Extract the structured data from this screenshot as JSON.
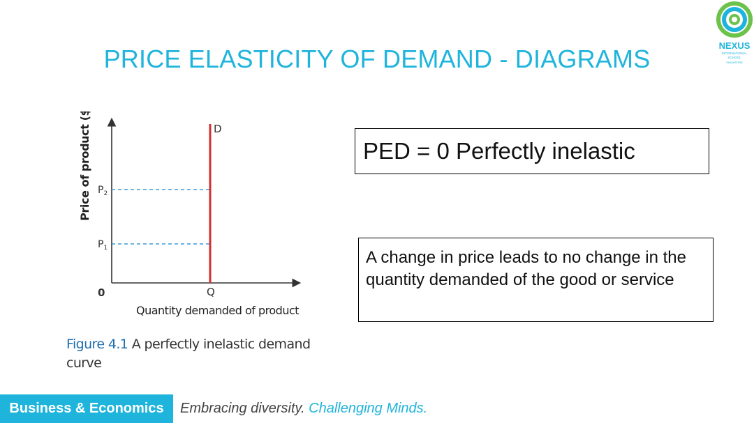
{
  "title": "PRICE ELASTICITY OF DEMAND - DIAGRAMS",
  "logo": {
    "name": "NEXUS",
    "line1": "INTERNATIONAL",
    "line2": "SCHOOL",
    "line3": "SINGAPORE"
  },
  "diagram": {
    "y_axis_label": "Price of product ($)",
    "x_axis_label": "Quantity demanded of product",
    "origin_label": "0",
    "demand_label": "D",
    "q_label": "Q",
    "p1_label": "P",
    "p1_sub": "1",
    "p2_label": "P",
    "p2_sub": "2",
    "demand_color": "#d32f2f",
    "guide_color": "#3a9ad9"
  },
  "caption": {
    "figure": "Figure 4.1",
    "text": " A perfectly inelastic demand curve"
  },
  "ped_box": "PED = 0 Perfectly inelastic",
  "desc_box": "A change in price leads to no change in the quantity demanded of the good or service",
  "footer": {
    "badge": "Business & Economics",
    "tagline": "Embracing diversity.",
    "tagline_accent": "Challenging Minds."
  }
}
